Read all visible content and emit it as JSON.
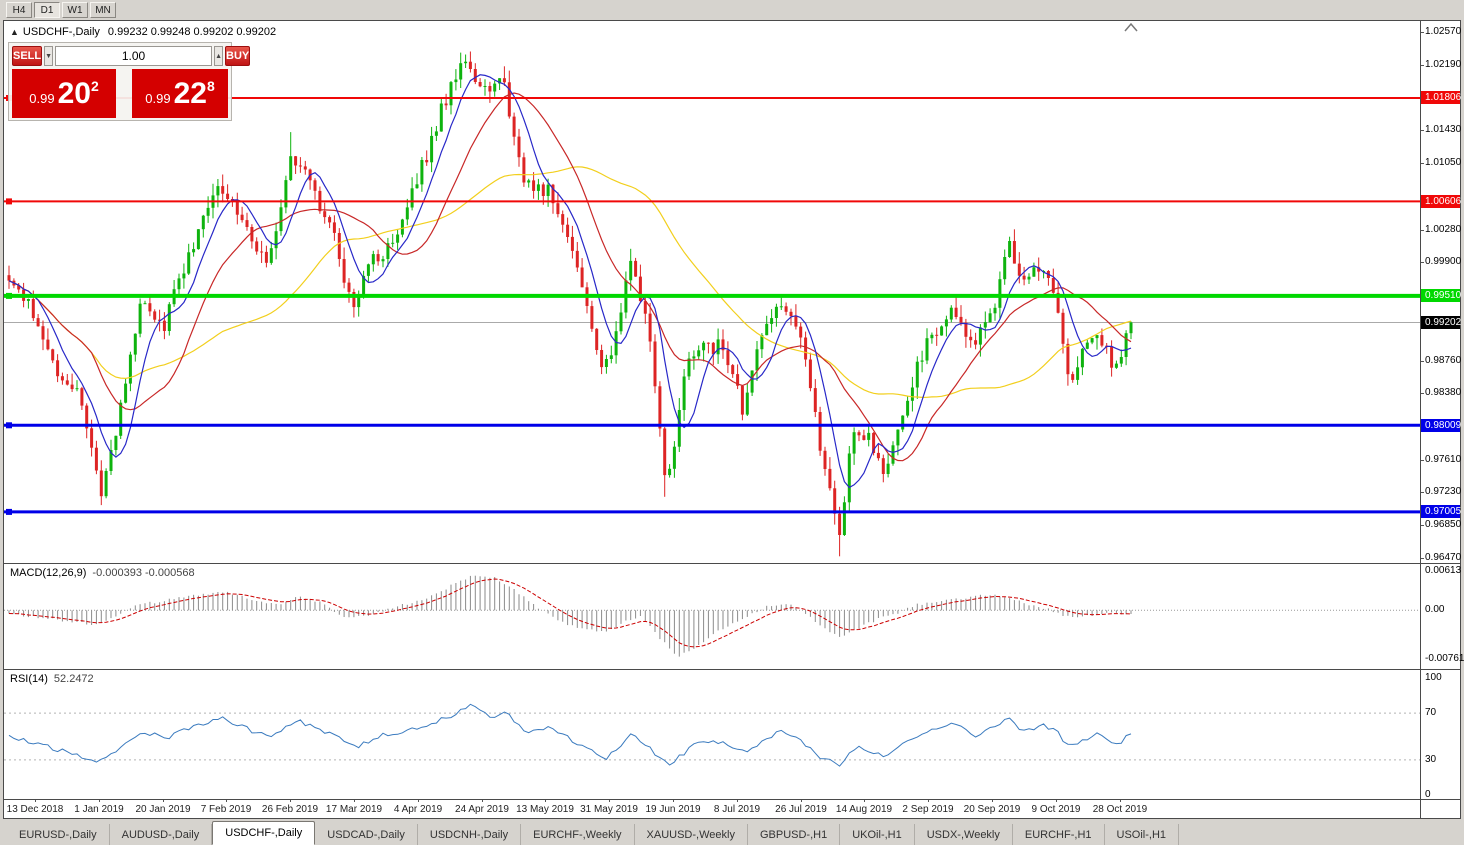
{
  "window": {
    "timeframes": [
      "H4",
      "D1",
      "W1",
      "MN"
    ],
    "active_timeframe": "D1"
  },
  "chart": {
    "collapse_icon": "▲",
    "title": "USDCHF-,Daily",
    "ohlc": "0.99232 0.99248 0.99202 0.99202"
  },
  "trade_panel": {
    "sell_label": "SELL",
    "buy_label": "BUY",
    "volume": "1.00",
    "spin_down": "▼",
    "spin_up": "▲",
    "sell_price": {
      "small": "0.99",
      "big": "20",
      "sup": "2"
    },
    "buy_price": {
      "small": "0.99",
      "big": "22",
      "sup": "8"
    }
  },
  "tabs": [
    {
      "label": "EURUSD-,Daily",
      "active": false
    },
    {
      "label": "AUDUSD-,Daily",
      "active": false
    },
    {
      "label": "USDCHF-,Daily",
      "active": true
    },
    {
      "label": "USDCAD-,Daily",
      "active": false
    },
    {
      "label": "USDCNH-,Daily",
      "active": false
    },
    {
      "label": "EURCHF-,Weekly",
      "active": false
    },
    {
      "label": "XAUUSD-,Weekly",
      "active": false
    },
    {
      "label": "GBPUSD-,H1",
      "active": false
    },
    {
      "label": "UKOil-,H1",
      "active": false
    },
    {
      "label": "USDX-,Weekly",
      "active": false
    },
    {
      "label": "EURCHF-,H1",
      "active": false
    },
    {
      "label": "USOil-,H1",
      "active": false
    }
  ],
  "chart_data": {
    "type": "candlestick",
    "symbol": "USDCHF-",
    "period": "Daily",
    "price_range": {
      "max": 1.02699,
      "min": 0.96412
    },
    "axis_ticks": [
      1.0257,
      1.0219,
      1.0143,
      1.0105,
      1.0028,
      0.999,
      0.9876,
      0.9838,
      0.9761,
      0.9723,
      0.9685,
      0.9647
    ],
    "hlines": [
      {
        "price": 1.01806,
        "label": "1.01806",
        "color": "#f00808",
        "width": 2
      },
      {
        "price": 1.00606,
        "label": "1.00606",
        "color": "#f00808",
        "width": 2
      },
      {
        "price": 0.9951,
        "label": "0.99510",
        "color": "#00d800",
        "width": 4
      },
      {
        "price": 0.98009,
        "label": "0.98009",
        "color": "#0000e8",
        "width": 3
      },
      {
        "price": 0.97005,
        "label": "0.97005",
        "color": "#0000e8",
        "width": 3
      }
    ],
    "current_price": {
      "value": 0.99202,
      "label": "0.99202",
      "badge_color": "#000000",
      "line_color": "#aaaaaa"
    },
    "candles": {
      "count": 232,
      "up_color": "#0eb30e",
      "down_color": "#dd2424",
      "path_anchors": [
        [
          0.0,
          0.9975
        ],
        [
          0.02,
          0.993
        ],
        [
          0.046,
          0.985
        ],
        [
          0.064,
          0.9838
        ],
        [
          0.082,
          0.9722
        ],
        [
          0.098,
          0.981
        ],
        [
          0.118,
          0.995
        ],
        [
          0.137,
          0.9915
        ],
        [
          0.16,
          1.0
        ],
        [
          0.184,
          1.0075
        ],
        [
          0.204,
          1.005
        ],
        [
          0.218,
          1.0012
        ],
        [
          0.232,
          0.9995
        ],
        [
          0.253,
          1.012
        ],
        [
          0.271,
          1.0075
        ],
        [
          0.289,
          1.0022
        ],
        [
          0.307,
          0.9938
        ],
        [
          0.324,
          0.999
        ],
        [
          0.346,
          1.0018
        ],
        [
          0.369,
          1.0105
        ],
        [
          0.39,
          1.0185
        ],
        [
          0.405,
          1.0222
        ],
        [
          0.422,
          1.0192
        ],
        [
          0.44,
          1.0205
        ],
        [
          0.458,
          1.009
        ],
        [
          0.48,
          1.0075
        ],
        [
          0.498,
          1.0022
        ],
        [
          0.516,
          0.9942
        ],
        [
          0.529,
          0.9858
        ],
        [
          0.543,
          0.991
        ],
        [
          0.554,
          0.9995
        ],
        [
          0.57,
          0.991
        ],
        [
          0.586,
          0.9726
        ],
        [
          0.604,
          0.9875
        ],
        [
          0.619,
          0.9896
        ],
        [
          0.636,
          0.989
        ],
        [
          0.654,
          0.9822
        ],
        [
          0.672,
          0.9908
        ],
        [
          0.686,
          0.9944
        ],
        [
          0.702,
          0.992
        ],
        [
          0.715,
          0.9838
        ],
        [
          0.727,
          0.9752
        ],
        [
          0.74,
          0.9672
        ],
        [
          0.752,
          0.979
        ],
        [
          0.766,
          0.9786
        ],
        [
          0.781,
          0.9748
        ],
        [
          0.797,
          0.9815
        ],
        [
          0.811,
          0.9878
        ],
        [
          0.825,
          0.9908
        ],
        [
          0.841,
          0.993
        ],
        [
          0.859,
          0.9898
        ],
        [
          0.877,
          0.993
        ],
        [
          0.89,
          1.0015
        ],
        [
          0.904,
          0.9962
        ],
        [
          0.917,
          0.9983
        ],
        [
          0.93,
          0.9965
        ],
        [
          0.944,
          0.9852
        ],
        [
          0.957,
          0.9886
        ],
        [
          0.97,
          0.9908
        ],
        [
          0.986,
          0.9858
        ],
        [
          1.0,
          0.99202
        ]
      ],
      "spikes": [
        {
          "t": 0.082,
          "low": 0.9716
        },
        {
          "t": 0.253,
          "high": 1.0141
        },
        {
          "t": 0.405,
          "high": 1.0231
        },
        {
          "t": 0.586,
          "low": 0.9718
        },
        {
          "t": 0.74,
          "low": 0.9649
        }
      ]
    },
    "moving_averages": [
      {
        "period": 7,
        "color": "#2828c8"
      },
      {
        "period": 18,
        "color": "#c82828"
      },
      {
        "period": 45,
        "color": "#f2cf1d"
      }
    ],
    "dates": [
      "13 Dec 2018",
      "1 Jan 2019",
      "20 Jan 2019",
      "7 Feb 2019",
      "26 Feb 2019",
      "17 Mar 2019",
      "4 Apr 2019",
      "24 Apr 2019",
      "13 May 2019",
      "31 May 2019",
      "19 Jun 2019",
      "8 Jul 2019",
      "26 Jul 2019",
      "14 Aug 2019",
      "2 Sep 2019",
      "20 Sep 2019",
      "9 Oct 2019",
      "28 Oct 2019"
    ],
    "macd": {
      "title": "MACD(12,26,9)",
      "values": "-0.000393 -0.000568",
      "axis": {
        "max": 0.00613,
        "zero": 0.0,
        "min": -0.00761
      },
      "axis_labels": [
        "0.00613",
        "0.00",
        "-0.00761"
      ],
      "bar_color": "#8a8a8a",
      "signal_color": "#cc0000",
      "anchors": [
        [
          0.0,
          -0.0006
        ],
        [
          0.029,
          -0.0012
        ],
        [
          0.055,
          -0.0018
        ],
        [
          0.078,
          -0.0022
        ],
        [
          0.095,
          -0.0008
        ],
        [
          0.113,
          0.0008
        ],
        [
          0.135,
          0.0014
        ],
        [
          0.158,
          0.0022
        ],
        [
          0.193,
          0.0028
        ],
        [
          0.22,
          0.0015
        ],
        [
          0.238,
          0.0008
        ],
        [
          0.26,
          0.0022
        ],
        [
          0.278,
          0.0012
        ],
        [
          0.3,
          -0.0012
        ],
        [
          0.318,
          -0.001
        ],
        [
          0.345,
          0.0006
        ],
        [
          0.372,
          0.0018
        ],
        [
          0.398,
          0.0042
        ],
        [
          0.416,
          0.0056
        ],
        [
          0.434,
          0.005
        ],
        [
          0.452,
          0.003
        ],
        [
          0.47,
          0.0005
        ],
        [
          0.492,
          -0.0018
        ],
        [
          0.514,
          -0.003
        ],
        [
          0.532,
          -0.0035
        ],
        [
          0.55,
          -0.0015
        ],
        [
          0.563,
          -0.001
        ],
        [
          0.581,
          -0.0045
        ],
        [
          0.596,
          -0.0072
        ],
        [
          0.612,
          -0.006
        ],
        [
          0.63,
          -0.0035
        ],
        [
          0.652,
          -0.0015
        ],
        [
          0.675,
          0.0005
        ],
        [
          0.695,
          0.0012
        ],
        [
          0.71,
          -0.0005
        ],
        [
          0.726,
          -0.0028
        ],
        [
          0.74,
          -0.0042
        ],
        [
          0.755,
          -0.003
        ],
        [
          0.773,
          -0.0015
        ],
        [
          0.791,
          -0.0005
        ],
        [
          0.808,
          0.0008
        ],
        [
          0.831,
          0.0016
        ],
        [
          0.853,
          0.002
        ],
        [
          0.875,
          0.0024
        ],
        [
          0.893,
          0.0018
        ],
        [
          0.911,
          0.0008
        ],
        [
          0.929,
          0.0
        ],
        [
          0.947,
          -0.0012
        ],
        [
          0.964,
          -0.0008
        ],
        [
          0.982,
          -0.0005
        ],
        [
          1.0,
          -0.0004
        ]
      ]
    },
    "rsi": {
      "title": "RSI(14)",
      "value": "52.2472",
      "axis_labels": [
        "100",
        "70",
        "30",
        "0"
      ],
      "axis_values": [
        100,
        70,
        30,
        0
      ],
      "levels": [
        70,
        30
      ],
      "color": "#3b7bbf",
      "anchors": [
        [
          0.0,
          50
        ],
        [
          0.02,
          45
        ],
        [
          0.046,
          38
        ],
        [
          0.082,
          29
        ],
        [
          0.104,
          45
        ],
        [
          0.118,
          55
        ],
        [
          0.14,
          48
        ],
        [
          0.162,
          58
        ],
        [
          0.189,
          66
        ],
        [
          0.216,
          55
        ],
        [
          0.234,
          50
        ],
        [
          0.256,
          64
        ],
        [
          0.274,
          57
        ],
        [
          0.291,
          50
        ],
        [
          0.309,
          40
        ],
        [
          0.327,
          50
        ],
        [
          0.349,
          54
        ],
        [
          0.372,
          60
        ],
        [
          0.394,
          68
        ],
        [
          0.412,
          76
        ],
        [
          0.43,
          66
        ],
        [
          0.443,
          70
        ],
        [
          0.461,
          54
        ],
        [
          0.483,
          58
        ],
        [
          0.501,
          47
        ],
        [
          0.519,
          37
        ],
        [
          0.532,
          31
        ],
        [
          0.545,
          42
        ],
        [
          0.556,
          52
        ],
        [
          0.57,
          41
        ],
        [
          0.588,
          25
        ],
        [
          0.608,
          41
        ],
        [
          0.621,
          46
        ],
        [
          0.639,
          44
        ],
        [
          0.657,
          35
        ],
        [
          0.675,
          48
        ],
        [
          0.69,
          55
        ],
        [
          0.704,
          49
        ],
        [
          0.719,
          35
        ],
        [
          0.74,
          25
        ],
        [
          0.755,
          41
        ],
        [
          0.768,
          38
        ],
        [
          0.782,
          32
        ],
        [
          0.799,
          45
        ],
        [
          0.813,
          52
        ],
        [
          0.827,
          57
        ],
        [
          0.843,
          60
        ],
        [
          0.861,
          51
        ],
        [
          0.879,
          58
        ],
        [
          0.891,
          65
        ],
        [
          0.905,
          54
        ],
        [
          0.92,
          60
        ],
        [
          0.933,
          56
        ],
        [
          0.945,
          40
        ],
        [
          0.959,
          47
        ],
        [
          0.973,
          53
        ],
        [
          0.987,
          43
        ],
        [
          1.0,
          52.25
        ]
      ]
    }
  }
}
